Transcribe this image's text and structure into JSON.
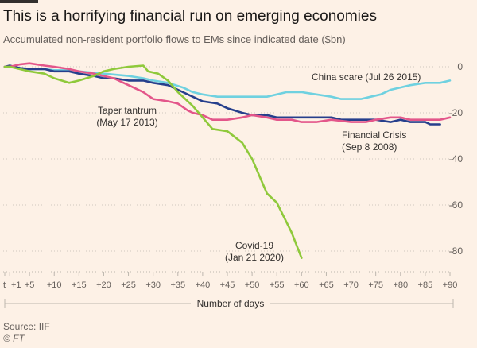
{
  "title": "This is a horrifying financial run on emerging economies",
  "subtitle": "Accumulated non-resident portfolio flows to EMs since indicated date ($bn)",
  "source": "Source: IIF",
  "credit": "© FT",
  "chart_data": {
    "type": "line",
    "xlabel": "Number of days",
    "ylabel": "",
    "xlim": [
      0,
      90
    ],
    "ylim": [
      -85,
      2
    ],
    "y_ticks": [
      0,
      -20,
      -40,
      -60,
      -80
    ],
    "y_tick_labels": [
      "0",
      "-20",
      "-40",
      "-60",
      "-80"
    ],
    "x_ticks": [
      0,
      1,
      5,
      10,
      15,
      20,
      25,
      30,
      35,
      40,
      45,
      50,
      55,
      60,
      65,
      70,
      75,
      80,
      85,
      90
    ],
    "x_tick_labels": [
      "t",
      "+1",
      "+5",
      "+10",
      "+15",
      "+20",
      "+25",
      "+30",
      "+35",
      "+40",
      "+45",
      "+50",
      "+55",
      "+60",
      "+65",
      "+70",
      "+75",
      "+80",
      "+85",
      "+90"
    ],
    "grid": "horizontal dotted",
    "series": [
      {
        "name": "China scare (Jul 26 2015)",
        "color": "#6fd1e0",
        "x": [
          0,
          1,
          3,
          5,
          8,
          10,
          13,
          15,
          20,
          25,
          28,
          30,
          33,
          36,
          38,
          40,
          43,
          45,
          48,
          50,
          53,
          55,
          57,
          60,
          63,
          66,
          68,
          70,
          72,
          74,
          76,
          78,
          80,
          82,
          85,
          88,
          90
        ],
        "y": [
          0,
          0,
          -0.5,
          -1,
          -1,
          -1.5,
          -1.5,
          -2,
          -3,
          -4,
          -5,
          -6,
          -7,
          -9,
          -11,
          -12,
          -13,
          -13,
          -13,
          -13,
          -13,
          -12,
          -11,
          -11,
          -12,
          -13,
          -14,
          -14,
          -14,
          -13,
          -12,
          -10,
          -9,
          -8,
          -7,
          -7,
          -6
        ]
      },
      {
        "name": "Financial Crisis (Sep 8 2008)",
        "color": "#263f8c",
        "x": [
          0,
          1,
          3,
          5,
          8,
          10,
          13,
          15,
          18,
          20,
          22,
          25,
          28,
          30,
          33,
          35,
          38,
          40,
          43,
          45,
          48,
          50,
          53,
          55,
          58,
          60,
          63,
          66,
          68,
          70,
          73,
          75,
          78,
          80,
          82,
          85,
          86,
          88
        ],
        "y": [
          0,
          0.5,
          -0.5,
          -1,
          -1,
          -2,
          -2,
          -3,
          -4,
          -5,
          -5,
          -6,
          -6,
          -7,
          -8,
          -10,
          -13,
          -15,
          -16,
          -18,
          -20,
          -21,
          -21,
          -22,
          -22,
          -22,
          -22,
          -22,
          -23,
          -23,
          -23,
          -23,
          -24,
          -23,
          -24,
          -24,
          -25,
          -25
        ]
      },
      {
        "name": "Taper tantrum (May 17 2013)",
        "color": "#e3568a",
        "x": [
          0,
          1,
          3,
          5,
          8,
          10,
          13,
          15,
          18,
          20,
          22,
          25,
          28,
          30,
          33,
          35,
          37,
          38,
          40,
          42,
          45,
          48,
          50,
          53,
          55,
          58,
          60,
          63,
          66,
          70,
          73,
          75,
          78,
          80,
          82,
          85,
          88,
          90
        ],
        "y": [
          0,
          0,
          1,
          1.5,
          0.5,
          0,
          -1,
          -2,
          -3,
          -4,
          -5,
          -8,
          -11,
          -14,
          -15,
          -16,
          -19,
          -20,
          -21,
          -23,
          -23,
          -22,
          -21,
          -22,
          -23,
          -23,
          -24,
          -24,
          -23,
          -24,
          -24,
          -23,
          -22,
          -22,
          -23,
          -23,
          -23,
          -22
        ]
      },
      {
        "name": "Covid-19 (Jan 21 2020)",
        "color": "#8fc93b",
        "x": [
          0,
          1,
          3,
          5,
          8,
          10,
          13,
          15,
          18,
          20,
          22,
          25,
          28,
          29,
          31,
          33,
          35,
          38,
          40,
          42,
          45,
          48,
          50,
          53,
          55,
          58,
          60
        ],
        "y": [
          0,
          0,
          -1,
          -2,
          -3,
          -5,
          -7,
          -6,
          -4,
          -2,
          -1,
          0,
          0.5,
          -2,
          -3,
          -6,
          -11,
          -17,
          -22,
          -27,
          -28,
          -33,
          -40,
          -55,
          -59,
          -72,
          -83
        ]
      }
    ],
    "annotations": [
      {
        "lines": [
          "China scare (Jul 26 2015)"
        ]
      },
      {
        "lines": [
          "Taper tantrum",
          "(May 17 2013)"
        ]
      },
      {
        "lines": [
          "Financial Crisis",
          "(Sep 8 2008)"
        ]
      },
      {
        "lines": [
          "Covid-19",
          "(Jan 21 2020)"
        ]
      }
    ]
  }
}
